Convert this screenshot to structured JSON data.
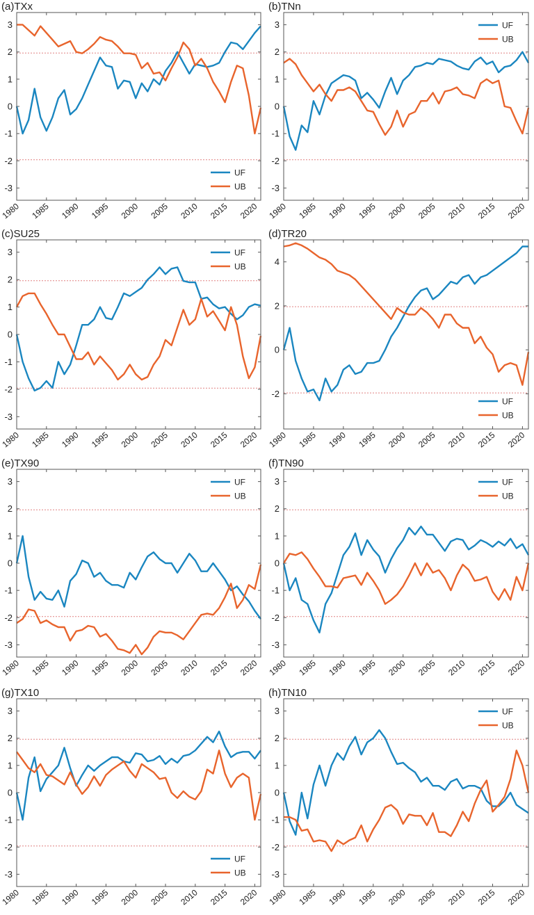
{
  "colors": {
    "UF": "#1a86c0",
    "UB": "#e8642c",
    "threshold": "#e08080"
  },
  "chart_data": [
    {
      "type": "line",
      "title": "(a)TXx",
      "legend": "bottom-right",
      "x_start": 1980,
      "xticks": [
        1980,
        1985,
        1990,
        1995,
        2000,
        2005,
        2010,
        2015,
        2020
      ],
      "yticks": [
        -3,
        -2,
        -1,
        0,
        1,
        2,
        3
      ],
      "ylim": [
        -3.45,
        3.45
      ],
      "thresholds": [
        -1.96,
        1.96
      ],
      "series": [
        {
          "name": "UF",
          "values": [
            0,
            -1,
            -0.5,
            0.65,
            -0.4,
            -0.9,
            -0.4,
            0.3,
            0.6,
            -0.3,
            -0.1,
            0.3,
            0.8,
            1.3,
            1.8,
            1.5,
            1.45,
            0.65,
            0.95,
            0.9,
            0.3,
            0.85,
            0.55,
            1.0,
            0.8,
            1.3,
            1.6,
            2.0,
            1.6,
            1.2,
            1.55,
            1.5,
            1.45,
            1.5,
            1.6,
            2.0,
            2.35,
            2.3,
            2.1,
            2.4,
            2.7,
            2.95
          ]
        },
        {
          "name": "UB",
          "values": [
            3.0,
            3.0,
            2.8,
            2.6,
            2.95,
            2.7,
            2.45,
            2.2,
            2.3,
            2.4,
            2.0,
            1.95,
            2.1,
            2.3,
            2.55,
            2.45,
            2.4,
            2.2,
            1.95,
            1.95,
            1.9,
            1.4,
            1.6,
            1.2,
            1.25,
            0.95,
            1.4,
            1.8,
            2.35,
            2.1,
            1.5,
            1.75,
            1.4,
            0.9,
            0.55,
            0.15,
            0.9,
            1.5,
            1.4,
            0.4,
            -1.0,
            -0.05
          ]
        }
      ]
    },
    {
      "type": "line",
      "title": "(b)TNn",
      "legend": "top-right",
      "x_start": 1980,
      "xticks": [
        1980,
        1985,
        1990,
        1995,
        2000,
        2005,
        2010,
        2015,
        2020
      ],
      "yticks": [
        -3,
        -2,
        -1,
        0,
        1,
        2,
        3
      ],
      "ylim": [
        -3.45,
        3.45
      ],
      "thresholds": [
        -1.96,
        1.96
      ],
      "series": [
        {
          "name": "UF",
          "values": [
            0,
            -1.1,
            -1.6,
            -0.7,
            -0.95,
            0.2,
            -0.3,
            0.4,
            0.85,
            1.0,
            1.15,
            1.1,
            0.95,
            0.3,
            0.5,
            0.25,
            -0.05,
            0.55,
            1.05,
            0.45,
            0.95,
            1.15,
            1.45,
            1.5,
            1.6,
            1.55,
            1.75,
            1.7,
            1.65,
            1.5,
            1.4,
            1.35,
            1.65,
            1.8,
            1.55,
            1.65,
            1.25,
            1.45,
            1.5,
            1.7,
            2.0,
            1.6
          ]
        },
        {
          "name": "UB",
          "values": [
            1.6,
            1.75,
            1.55,
            1.15,
            0.85,
            0.55,
            0.8,
            0.45,
            0.2,
            0.6,
            0.6,
            0.7,
            0.55,
            0.2,
            -0.15,
            -0.2,
            -0.65,
            -1.05,
            -0.75,
            -0.15,
            -0.75,
            -0.3,
            -0.2,
            0.2,
            0.2,
            0.5,
            0.1,
            0.55,
            0.6,
            0.7,
            0.45,
            0.4,
            0.3,
            0.85,
            1.0,
            0.85,
            0.95,
            0.0,
            -0.05,
            -0.55,
            -1.0,
            -0.05
          ]
        }
      ]
    },
    {
      "type": "line",
      "title": "(c)SU25",
      "legend": "top-right",
      "x_start": 1980,
      "xticks": [
        1980,
        1985,
        1990,
        1995,
        2000,
        2005,
        2010,
        2015,
        2020
      ],
      "yticks": [
        -3,
        -2,
        -1,
        0,
        1,
        2,
        3
      ],
      "ylim": [
        -3.45,
        3.45
      ],
      "thresholds": [
        -1.96,
        1.96
      ],
      "series": [
        {
          "name": "UF",
          "values": [
            0,
            -1.0,
            -1.6,
            -2.05,
            -1.95,
            -1.7,
            -1.95,
            -1.0,
            -1.45,
            -1.1,
            -0.4,
            0.35,
            0.35,
            0.55,
            1.0,
            0.6,
            0.55,
            1.0,
            1.5,
            1.4,
            1.55,
            1.7,
            2.0,
            2.2,
            2.45,
            2.2,
            2.4,
            2.45,
            1.95,
            1.9,
            1.9,
            1.3,
            1.35,
            1.1,
            0.95,
            1.0,
            0.75,
            0.55,
            0.7,
            1.0,
            1.1,
            1.05
          ]
        },
        {
          "name": "UB",
          "values": [
            1.0,
            1.4,
            1.5,
            1.5,
            1.1,
            0.75,
            0.35,
            0.0,
            0.0,
            -0.45,
            -0.9,
            -0.9,
            -0.65,
            -1.1,
            -0.8,
            -1.05,
            -1.3,
            -1.65,
            -1.45,
            -1.1,
            -1.45,
            -1.65,
            -1.55,
            -1.1,
            -0.8,
            -0.2,
            -0.4,
            0.25,
            0.9,
            0.35,
            0.55,
            1.3,
            0.65,
            0.85,
            0.5,
            0.15,
            1.0,
            0.35,
            -0.8,
            -1.6,
            -1.2,
            -0.05
          ]
        }
      ]
    },
    {
      "type": "line",
      "title": "(d)TR20",
      "legend": "bottom-right",
      "x_start": 1980,
      "xticks": [
        1980,
        1985,
        1990,
        1995,
        2000,
        2005,
        2010,
        2015,
        2020
      ],
      "yticks": [
        -2,
        0,
        2,
        4
      ],
      "ylim": [
        -3.6,
        5.0
      ],
      "thresholds": [
        -1.96,
        1.96
      ],
      "series": [
        {
          "name": "UF",
          "values": [
            0,
            1.0,
            -0.5,
            -1.3,
            -1.9,
            -1.8,
            -2.3,
            -1.3,
            -1.9,
            -1.6,
            -0.9,
            -0.7,
            -1.1,
            -1.0,
            -0.6,
            -0.6,
            -0.5,
            0.0,
            0.6,
            1.0,
            1.5,
            2.0,
            2.4,
            2.7,
            2.8,
            2.3,
            2.5,
            2.8,
            3.1,
            3.0,
            3.3,
            3.4,
            3.0,
            3.3,
            3.4,
            3.6,
            3.8,
            4.0,
            4.2,
            4.4,
            4.7,
            4.7
          ]
        },
        {
          "name": "UB",
          "values": [
            4.7,
            4.75,
            4.85,
            4.75,
            4.6,
            4.4,
            4.2,
            4.1,
            3.9,
            3.6,
            3.5,
            3.4,
            3.2,
            2.9,
            2.6,
            2.3,
            2.0,
            1.7,
            1.4,
            1.9,
            1.7,
            1.6,
            1.6,
            1.9,
            1.7,
            1.4,
            1.0,
            1.6,
            1.6,
            1.2,
            1.0,
            1.0,
            0.3,
            0.6,
            0.1,
            -0.2,
            -1.0,
            -0.7,
            -0.6,
            -0.7,
            -1.6,
            -0.1
          ]
        }
      ]
    },
    {
      "type": "line",
      "title": "(e)TX90",
      "legend": "top-right",
      "x_start": 1980,
      "xticks": [
        1980,
        1985,
        1990,
        1995,
        2000,
        2005,
        2010,
        2015,
        2020
      ],
      "yticks": [
        -3,
        -2,
        -1,
        0,
        1,
        2,
        3
      ],
      "ylim": [
        -3.45,
        3.45
      ],
      "thresholds": [
        -1.96,
        1.96
      ],
      "series": [
        {
          "name": "UF",
          "values": [
            0,
            1.0,
            -0.5,
            -1.35,
            -1.05,
            -1.3,
            -1.35,
            -1.0,
            -1.6,
            -0.65,
            -0.4,
            0.1,
            0.0,
            -0.5,
            -0.35,
            -0.65,
            -0.8,
            -0.8,
            -0.9,
            -0.35,
            -0.6,
            -0.15,
            0.25,
            0.4,
            0.15,
            0.0,
            0.0,
            -0.35,
            0.0,
            0.35,
            0.1,
            -0.3,
            -0.3,
            0.0,
            -0.3,
            -0.6,
            -1.0,
            -0.85,
            -1.15,
            -1.4,
            -1.75,
            -2.05
          ]
        },
        {
          "name": "UB",
          "values": [
            -2.2,
            -2.05,
            -1.7,
            -1.75,
            -2.2,
            -2.1,
            -2.25,
            -2.35,
            -2.35,
            -2.85,
            -2.5,
            -2.45,
            -2.3,
            -2.35,
            -2.7,
            -2.6,
            -2.85,
            -3.15,
            -3.2,
            -3.3,
            -3.0,
            -3.35,
            -3.1,
            -2.7,
            -2.5,
            -2.55,
            -2.55,
            -2.65,
            -2.8,
            -2.5,
            -2.2,
            -1.9,
            -1.85,
            -1.9,
            -1.65,
            -1.25,
            -0.75,
            -1.65,
            -1.35,
            -0.8,
            -0.95,
            -0.05
          ]
        }
      ]
    },
    {
      "type": "line",
      "title": "(f)TN90",
      "legend": "top-right",
      "x_start": 1980,
      "xticks": [
        1980,
        1985,
        1990,
        1995,
        2000,
        2005,
        2010,
        2015,
        2020
      ],
      "yticks": [
        -3,
        -2,
        -1,
        0,
        1,
        2,
        3
      ],
      "ylim": [
        -3.45,
        3.45
      ],
      "thresholds": [
        -1.96,
        1.96
      ],
      "series": [
        {
          "name": "UF",
          "values": [
            0,
            -1.0,
            -0.55,
            -1.35,
            -1.5,
            -2.1,
            -2.55,
            -1.5,
            -1.1,
            -0.4,
            0.3,
            0.6,
            1.1,
            0.3,
            0.85,
            0.5,
            0.25,
            -0.35,
            0.15,
            0.55,
            0.85,
            1.3,
            1.05,
            1.35,
            1.05,
            1.05,
            0.75,
            0.45,
            0.8,
            0.9,
            0.85,
            0.5,
            0.65,
            0.85,
            0.75,
            0.6,
            0.8,
            0.65,
            0.9,
            0.55,
            0.7,
            0.3
          ]
        },
        {
          "name": "UB",
          "values": [
            0.0,
            0.35,
            0.3,
            0.4,
            0.15,
            -0.2,
            -0.5,
            -0.85,
            -0.85,
            -0.9,
            -0.55,
            -0.5,
            -0.45,
            -0.8,
            -0.35,
            -0.65,
            -1.0,
            -1.5,
            -1.35,
            -1.15,
            -0.85,
            -0.45,
            0.0,
            -0.45,
            0.0,
            -0.35,
            -0.25,
            -0.55,
            -1.0,
            -0.45,
            -0.05,
            -0.25,
            -0.65,
            -0.6,
            -0.5,
            -1.05,
            -1.35,
            -0.95,
            -1.35,
            -0.5,
            -1.0,
            0.0
          ]
        }
      ]
    },
    {
      "type": "line",
      "title": "(g)TX10",
      "legend": "bottom-right",
      "x_start": 1980,
      "xticks": [
        1980,
        1985,
        1990,
        1995,
        2000,
        2005,
        2010,
        2015,
        2020
      ],
      "yticks": [
        -3,
        -2,
        -1,
        0,
        1,
        2,
        3
      ],
      "ylim": [
        -3.45,
        3.45
      ],
      "thresholds": [
        -1.96,
        1.96
      ],
      "series": [
        {
          "name": "UF",
          "values": [
            0,
            -1.0,
            0.55,
            1.3,
            0.05,
            0.5,
            0.75,
            1.0,
            1.65,
            0.9,
            0.25,
            0.65,
            1.0,
            0.8,
            1.0,
            1.15,
            1.3,
            1.3,
            1.15,
            1.1,
            1.45,
            1.4,
            1.15,
            1.2,
            1.35,
            1.05,
            1.25,
            1.1,
            1.35,
            1.4,
            1.55,
            1.8,
            2.05,
            1.85,
            2.25,
            1.7,
            1.3,
            1.45,
            1.5,
            1.5,
            1.25,
            1.55
          ]
        },
        {
          "name": "UB",
          "values": [
            1.5,
            1.2,
            0.9,
            0.75,
            1.05,
            0.65,
            0.6,
            0.45,
            0.3,
            0.75,
            0.3,
            -0.05,
            0.2,
            0.6,
            0.25,
            0.65,
            0.85,
            1.0,
            1.15,
            0.8,
            0.55,
            1.05,
            0.9,
            0.75,
            0.5,
            0.55,
            0.0,
            -0.2,
            0.05,
            -0.15,
            -0.25,
            0.05,
            0.85,
            0.7,
            1.55,
            0.7,
            0.2,
            0.55,
            0.7,
            0.55,
            -1.0,
            -0.05
          ]
        }
      ]
    },
    {
      "type": "line",
      "title": "(h)TN10",
      "legend": "top-right",
      "x_start": 1980,
      "xticks": [
        1980,
        1985,
        1990,
        1995,
        2000,
        2005,
        2010,
        2015,
        2020
      ],
      "yticks": [
        -3,
        -2,
        -1,
        0,
        1,
        2,
        3
      ],
      "ylim": [
        -3.45,
        3.45
      ],
      "thresholds": [
        -1.96,
        1.96
      ],
      "series": [
        {
          "name": "UF",
          "values": [
            0,
            -1.05,
            -1.55,
            0.0,
            -0.95,
            0.3,
            1.0,
            0.25,
            1.0,
            1.45,
            1.2,
            1.7,
            2.05,
            1.4,
            1.85,
            2.0,
            2.3,
            2.0,
            1.5,
            1.05,
            1.1,
            0.9,
            0.75,
            0.4,
            0.55,
            0.25,
            0.25,
            0.1,
            0.4,
            0.5,
            0.15,
            0.25,
            0.25,
            0.15,
            -0.3,
            -0.5,
            -0.5,
            -0.3,
            0.0,
            -0.45,
            -0.6,
            -0.75
          ]
        },
        {
          "name": "UB",
          "values": [
            -0.9,
            -0.9,
            -1.0,
            -1.4,
            -1.35,
            -1.8,
            -1.75,
            -1.8,
            -2.15,
            -1.75,
            -1.9,
            -1.75,
            -1.65,
            -1.2,
            -1.8,
            -1.35,
            -1.0,
            -0.55,
            -0.45,
            -0.65,
            -1.15,
            -0.8,
            -0.85,
            -0.85,
            -1.2,
            -0.75,
            -1.45,
            -1.45,
            -1.6,
            -1.2,
            -0.7,
            -1.05,
            -0.4,
            0.1,
            0.45,
            -0.7,
            -0.45,
            -0.15,
            0.5,
            1.55,
            1.0,
            0.0
          ]
        }
      ]
    }
  ]
}
